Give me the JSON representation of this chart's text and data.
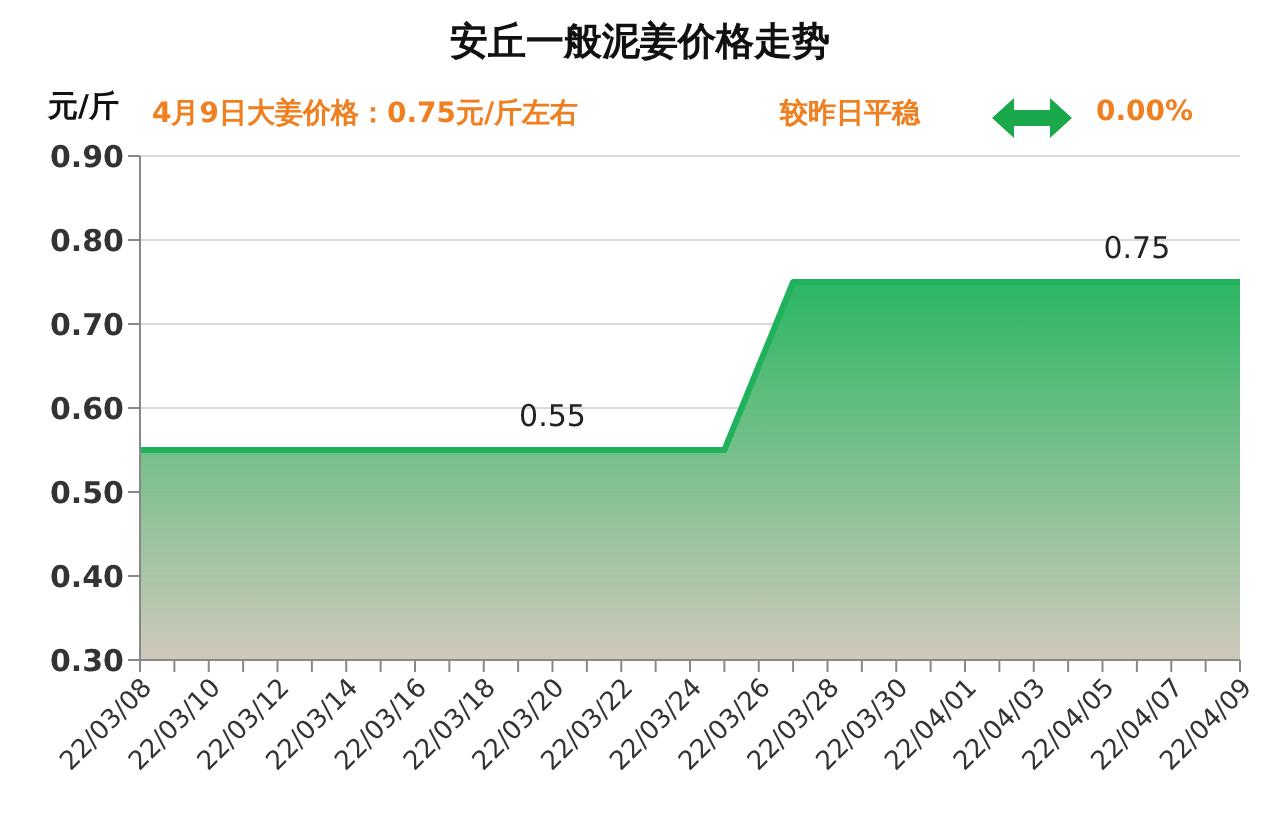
{
  "chart_data": {
    "type": "area",
    "title": "安丘一般泥姜价格走势",
    "ylabel": "元/斤",
    "annotations": [
      "4月9日大姜价格：0.75元/斤左右",
      "较昨日平稳",
      "0.00%"
    ],
    "categories": [
      "22/03/08",
      null,
      "22/03/10",
      null,
      "22/03/12",
      null,
      "22/03/14",
      null,
      "22/03/16",
      null,
      "22/03/18",
      null,
      "22/03/20",
      null,
      "22/03/22",
      null,
      "22/03/24",
      null,
      "22/03/26",
      null,
      "22/03/28",
      null,
      "22/03/30",
      null,
      "22/04/01",
      null,
      "22/04/03",
      null,
      "22/04/05",
      null,
      "22/04/07",
      null,
      "22/04/09"
    ],
    "series": [
      {
        "color": "#1fb25a",
        "values": [
          0.55,
          0.55,
          0.55,
          0.55,
          0.55,
          0.55,
          0.55,
          0.55,
          0.55,
          0.55,
          0.55,
          0.55,
          0.55,
          0.55,
          0.55,
          0.55,
          0.55,
          0.55,
          0.65,
          0.75,
          0.75,
          0.75,
          0.75,
          0.75,
          0.75,
          0.75,
          0.75,
          0.75,
          0.75,
          0.75,
          0.75,
          0.75,
          0.75
        ],
        "value_labels": [
          null,
          null,
          null,
          null,
          null,
          null,
          null,
          null,
          null,
          null,
          null,
          null,
          "0.55",
          null,
          null,
          null,
          null,
          null,
          null,
          null,
          null,
          null,
          null,
          null,
          null,
          null,
          null,
          null,
          null,
          "0.75",
          null,
          null,
          null
        ]
      }
    ],
    "ylim": [
      0.3,
      0.9
    ],
    "yticks": [
      {
        "value": 0.3,
        "label": "0.30"
      },
      {
        "value": 0.4,
        "label": "0.40"
      },
      {
        "value": 0.5,
        "label": "0.50"
      },
      {
        "value": 0.6,
        "label": "0.60"
      },
      {
        "value": 0.7,
        "label": "0.70"
      },
      {
        "value": 0.8,
        "label": "0.80"
      },
      {
        "value": 0.9,
        "label": "0.90"
      }
    ],
    "grid": "y",
    "legend": false,
    "marker": "none"
  }
}
